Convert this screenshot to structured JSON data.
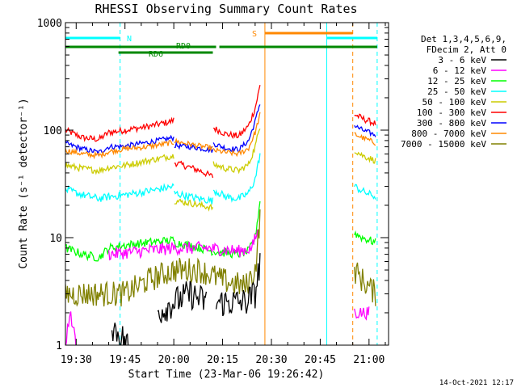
{
  "chart_data": {
    "type": "line",
    "title": "RHESSI Observing Summary Count Rates",
    "xlabel": "Start Time (23-Mar-06 19:26:42)",
    "ylabel": "Count Rate (s⁻¹ detector⁻¹)",
    "y_scale": "log",
    "ylim": [
      1,
      1000
    ],
    "xlim": [
      "19:26:42",
      "21:06:00"
    ],
    "x_tick_labels": [
      "19:30",
      "19:45",
      "20:00",
      "20:15",
      "20:30",
      "20:45",
      "21:00"
    ],
    "y_tick_labels": [
      "1",
      "10",
      "100",
      "1000"
    ],
    "footer_date": "14-Oct-2021 12:17",
    "legend": {
      "position": "right",
      "header": [
        "Det 1,3,4,5,6,9,",
        "FDecim 2, Att 0"
      ],
      "entries": [
        {
          "name": "3 - 6 keV",
          "color": "#000000"
        },
        {
          "name": "6 - 12 keV",
          "color": "#ff00ff"
        },
        {
          "name": "12 - 25 keV",
          "color": "#00ff00"
        },
        {
          "name": "25 - 50 keV",
          "color": "#00ffff"
        },
        {
          "name": "50 - 100 keV",
          "color": "#cccc00"
        },
        {
          "name": "100 - 300 keV",
          "color": "#ff0000"
        },
        {
          "name": "300 - 800 keV",
          "color": "#0000ff"
        },
        {
          "name": "800 - 7000 keV",
          "color": "#ff8800"
        },
        {
          "name": "7000 - 15000 keV",
          "color": "#808000"
        }
      ]
    },
    "flag_bars": [
      {
        "label": "N",
        "color": "#00ffff",
        "segments": [
          [
            "19:26:42",
            "19:43:30"
          ],
          [
            "20:47:00",
            "21:02:30"
          ]
        ]
      },
      {
        "label": "S",
        "color": "#ff8800",
        "segments": [
          [
            "20:28:00",
            "20:55:00"
          ]
        ]
      },
      {
        "label": "RD0",
        "color": "#008800",
        "segments": [
          [
            "19:26:42",
            "20:13:00"
          ],
          [
            "20:14:00",
            "21:02:30"
          ]
        ]
      },
      {
        "label": "RD6",
        "color": "#008800",
        "segments": [
          [
            "19:43:00",
            "20:12:00"
          ]
        ]
      }
    ],
    "vlines": [
      {
        "time": "19:26:42",
        "color": "#00ffff",
        "style": "solid"
      },
      {
        "time": "19:43:30",
        "color": "#00ffff",
        "style": "dashed"
      },
      {
        "time": "20:28:00",
        "color": "#ff8800",
        "style": "solid"
      },
      {
        "time": "20:47:00",
        "color": "#00ffff",
        "style": "solid"
      },
      {
        "time": "20:55:00",
        "color": "#ff8800",
        "style": "dashed"
      },
      {
        "time": "21:02:30",
        "color": "#00ffff",
        "style": "dashed"
      }
    ],
    "series": [
      {
        "name": "100 - 300 keV",
        "color": "#ff0000",
        "noise": 0.03,
        "segments": [
          {
            "points": [
              [
                "19:26:42",
                100
              ],
              [
                "19:32:00",
                85
              ],
              [
                "19:37:00",
                82
              ],
              [
                "19:40:00",
                95
              ],
              [
                "19:45:00",
                100
              ],
              [
                "19:52:00",
                108
              ],
              [
                "19:59:00",
                120
              ],
              [
                "20:00:00",
                125
              ]
            ]
          },
          {
            "points": [
              [
                "20:00:10",
                50
              ],
              [
                "20:05:00",
                45
              ],
              [
                "20:08:00",
                42
              ],
              [
                "20:11:00",
                38
              ],
              [
                "20:12:00",
                37
              ]
            ]
          },
          {
            "points": [
              [
                "20:12:10",
                105
              ],
              [
                "20:16:00",
                92
              ],
              [
                "20:20:00",
                88
              ],
              [
                "20:23:00",
                110
              ],
              [
                "20:25:00",
                160
              ],
              [
                "20:26:30",
                260
              ]
            ]
          },
          {
            "points": [
              [
                "20:55:30",
                140
              ],
              [
                "20:58:00",
                128
              ],
              [
                "21:02:00",
                115
              ]
            ]
          }
        ]
      },
      {
        "name": "300 - 800 keV",
        "color": "#0000ff",
        "noise": 0.025,
        "segments": [
          {
            "points": [
              [
                "19:26:42",
                75
              ],
              [
                "19:32:00",
                67
              ],
              [
                "19:37:00",
                62
              ],
              [
                "19:40:00",
                70
              ],
              [
                "19:45:00",
                71
              ],
              [
                "19:52:00",
                77
              ],
              [
                "20:00:00",
                85
              ]
            ]
          },
          {
            "points": [
              [
                "20:00:10",
                72
              ],
              [
                "20:05:00",
                70
              ],
              [
                "20:08:00",
                68
              ],
              [
                "20:12:00",
                65
              ]
            ]
          },
          {
            "points": [
              [
                "20:12:10",
                75
              ],
              [
                "20:16:00",
                68
              ],
              [
                "20:20:00",
                66
              ],
              [
                "20:23:00",
                80
              ],
              [
                "20:25:00",
                120
              ],
              [
                "20:26:30",
                180
              ]
            ]
          },
          {
            "points": [
              [
                "20:55:30",
                110
              ],
              [
                "20:58:00",
                100
              ],
              [
                "21:02:00",
                90
              ]
            ]
          }
        ]
      },
      {
        "name": "800 - 7000 keV",
        "color": "#ff8800",
        "noise": 0.025,
        "segments": [
          {
            "points": [
              [
                "19:26:42",
                65
              ],
              [
                "19:32:00",
                60
              ],
              [
                "19:37:00",
                58
              ],
              [
                "19:40:00",
                63
              ],
              [
                "19:45:00",
                67
              ],
              [
                "19:52:00",
                70
              ],
              [
                "20:00:00",
                77
              ]
            ]
          },
          {
            "points": [
              [
                "20:00:10",
                79
              ],
              [
                "20:05:00",
                74
              ],
              [
                "20:08:00",
                71
              ],
              [
                "20:12:00",
                68
              ]
            ]
          },
          {
            "points": [
              [
                "20:12:10",
                65
              ],
              [
                "20:16:00",
                62
              ],
              [
                "20:20:00",
                60
              ],
              [
                "20:23:00",
                68
              ],
              [
                "20:25:00",
                95
              ],
              [
                "20:26:30",
                140
              ]
            ]
          },
          {
            "points": [
              [
                "20:55:30",
                92
              ],
              [
                "20:58:00",
                85
              ],
              [
                "21:02:00",
                76
              ]
            ]
          }
        ]
      },
      {
        "name": "50 - 100 keV",
        "color": "#cccc00",
        "noise": 0.03,
        "segments": [
          {
            "points": [
              [
                "19:26:42",
                47
              ],
              [
                "19:32:00",
                44
              ],
              [
                "19:37:00",
                42
              ],
              [
                "19:40:00",
                45
              ],
              [
                "19:45:00",
                47
              ],
              [
                "19:52:00",
                52
              ],
              [
                "20:00:00",
                58
              ]
            ]
          },
          {
            "points": [
              [
                "20:00:10",
                22
              ],
              [
                "20:05:00",
                21
              ],
              [
                "20:08:00",
                20
              ],
              [
                "20:12:00",
                19
              ]
            ]
          },
          {
            "points": [
              [
                "20:12:10",
                48
              ],
              [
                "20:16:00",
                44
              ],
              [
                "20:20:00",
                42
              ],
              [
                "20:23:00",
                48
              ],
              [
                "20:25:00",
                70
              ],
              [
                "20:26:30",
                110
              ]
            ]
          },
          {
            "points": [
              [
                "20:55:30",
                65
              ],
              [
                "20:58:00",
                58
              ],
              [
                "21:02:00",
                52
              ]
            ]
          }
        ]
      },
      {
        "name": "25 - 50 keV",
        "color": "#00ffff",
        "noise": 0.035,
        "segments": [
          {
            "points": [
              [
                "19:26:42",
                28
              ],
              [
                "19:32:00",
                25
              ],
              [
                "19:37:00",
                23
              ],
              [
                "19:40:00",
                24
              ],
              [
                "19:45:00",
                25
              ],
              [
                "19:52:00",
                27
              ],
              [
                "20:00:00",
                30
              ]
            ]
          },
          {
            "points": [
              [
                "20:00:10",
                26
              ],
              [
                "20:05:00",
                24
              ],
              [
                "20:08:00",
                23
              ],
              [
                "20:12:00",
                22
              ]
            ]
          },
          {
            "points": [
              [
                "20:12:10",
                28
              ],
              [
                "20:16:00",
                24
              ],
              [
                "20:20:00",
                23
              ],
              [
                "20:23:00",
                26
              ],
              [
                "20:25:00",
                35
              ],
              [
                "20:26:30",
                60
              ]
            ]
          },
          {
            "points": [
              [
                "20:55:30",
                30
              ],
              [
                "20:58:00",
                27
              ],
              [
                "21:02:00",
                24
              ]
            ]
          }
        ]
      },
      {
        "name": "12 - 25 keV",
        "color": "#00ff00",
        "noise": 0.04,
        "segments": [
          {
            "points": [
              [
                "19:26:42",
                8
              ],
              [
                "19:32:00",
                7
              ],
              [
                "19:37:00",
                6.5
              ],
              [
                "19:40:00",
                8
              ],
              [
                "19:45:00",
                8.5
              ],
              [
                "19:52:00",
                9
              ],
              [
                "20:00:00",
                9.5
              ]
            ]
          },
          {
            "points": [
              [
                "20:00:10",
                9
              ],
              [
                "20:05:00",
                8.5
              ],
              [
                "20:08:00",
                8
              ],
              [
                "20:12:00",
                7.5
              ]
            ]
          },
          {
            "points": [
              [
                "20:12:10",
                7.5
              ],
              [
                "20:16:00",
                7.2
              ],
              [
                "20:20:00",
                7
              ],
              [
                "20:23:00",
                7.5
              ],
              [
                "20:25:00",
                10
              ],
              [
                "20:26:30",
                22
              ]
            ]
          },
          {
            "points": [
              [
                "20:55:30",
                11
              ],
              [
                "20:58:00",
                10
              ],
              [
                "21:02:00",
                9
              ]
            ]
          }
        ]
      },
      {
        "name": "6 - 12 keV",
        "color": "#ff00ff",
        "noise": 0.06,
        "segments": [
          {
            "points": [
              [
                "19:26:42",
                1
              ],
              [
                "19:28:00",
                2
              ],
              [
                "19:29:00",
                1.5
              ],
              [
                "19:30:00",
                1
              ]
            ]
          },
          {
            "points": [
              [
                "19:40:00",
                7
              ],
              [
                "19:50:00",
                7.5
              ],
              [
                "20:00:00",
                8
              ],
              [
                "20:10:00",
                8
              ],
              [
                "20:20:00",
                7.5
              ],
              [
                "20:24:00",
                8
              ],
              [
                "20:26:00",
                12
              ]
            ]
          },
          {
            "points": [
              [
                "20:55:30",
                2
              ],
              [
                "20:58:00",
                2
              ],
              [
                "21:00:00",
                2
              ]
            ]
          }
        ]
      },
      {
        "name": "7000 - 15000 keV",
        "color": "#808000",
        "noise": 0.12,
        "segments": [
          {
            "points": [
              [
                "19:26:42",
                3
              ],
              [
                "19:35:00",
                3
              ],
              [
                "19:45:00",
                3
              ],
              [
                "19:52:00",
                4
              ],
              [
                "20:00:00",
                5
              ],
              [
                "20:08:00",
                5
              ],
              [
                "20:15:00",
                4
              ],
              [
                "20:22:00",
                3.5
              ],
              [
                "20:25:00",
                5
              ],
              [
                "20:26:30",
                15
              ]
            ]
          },
          {
            "points": [
              [
                "20:55:30",
                5
              ],
              [
                "20:58:00",
                4
              ],
              [
                "21:02:00",
                3
              ]
            ]
          }
        ]
      },
      {
        "name": "3 - 6 keV",
        "color": "#000000",
        "noise": 0.14,
        "segments": [
          {
            "points": [
              [
                "19:41:00",
                1.5
              ],
              [
                "19:44:00",
                1.2
              ],
              [
                "19:46:00",
                1
              ]
            ]
          },
          {
            "points": [
              [
                "19:55:00",
                2
              ],
              [
                "20:00:00",
                2.5
              ],
              [
                "20:05:00",
                3
              ],
              [
                "20:10:00",
                2.5
              ]
            ]
          },
          {
            "points": [
              [
                "20:13:00",
                2.5
              ],
              [
                "20:18:00",
                2.5
              ],
              [
                "20:22:00",
                2.5
              ],
              [
                "20:25:00",
                3
              ],
              [
                "20:26:30",
                6
              ]
            ]
          }
        ]
      }
    ]
  }
}
